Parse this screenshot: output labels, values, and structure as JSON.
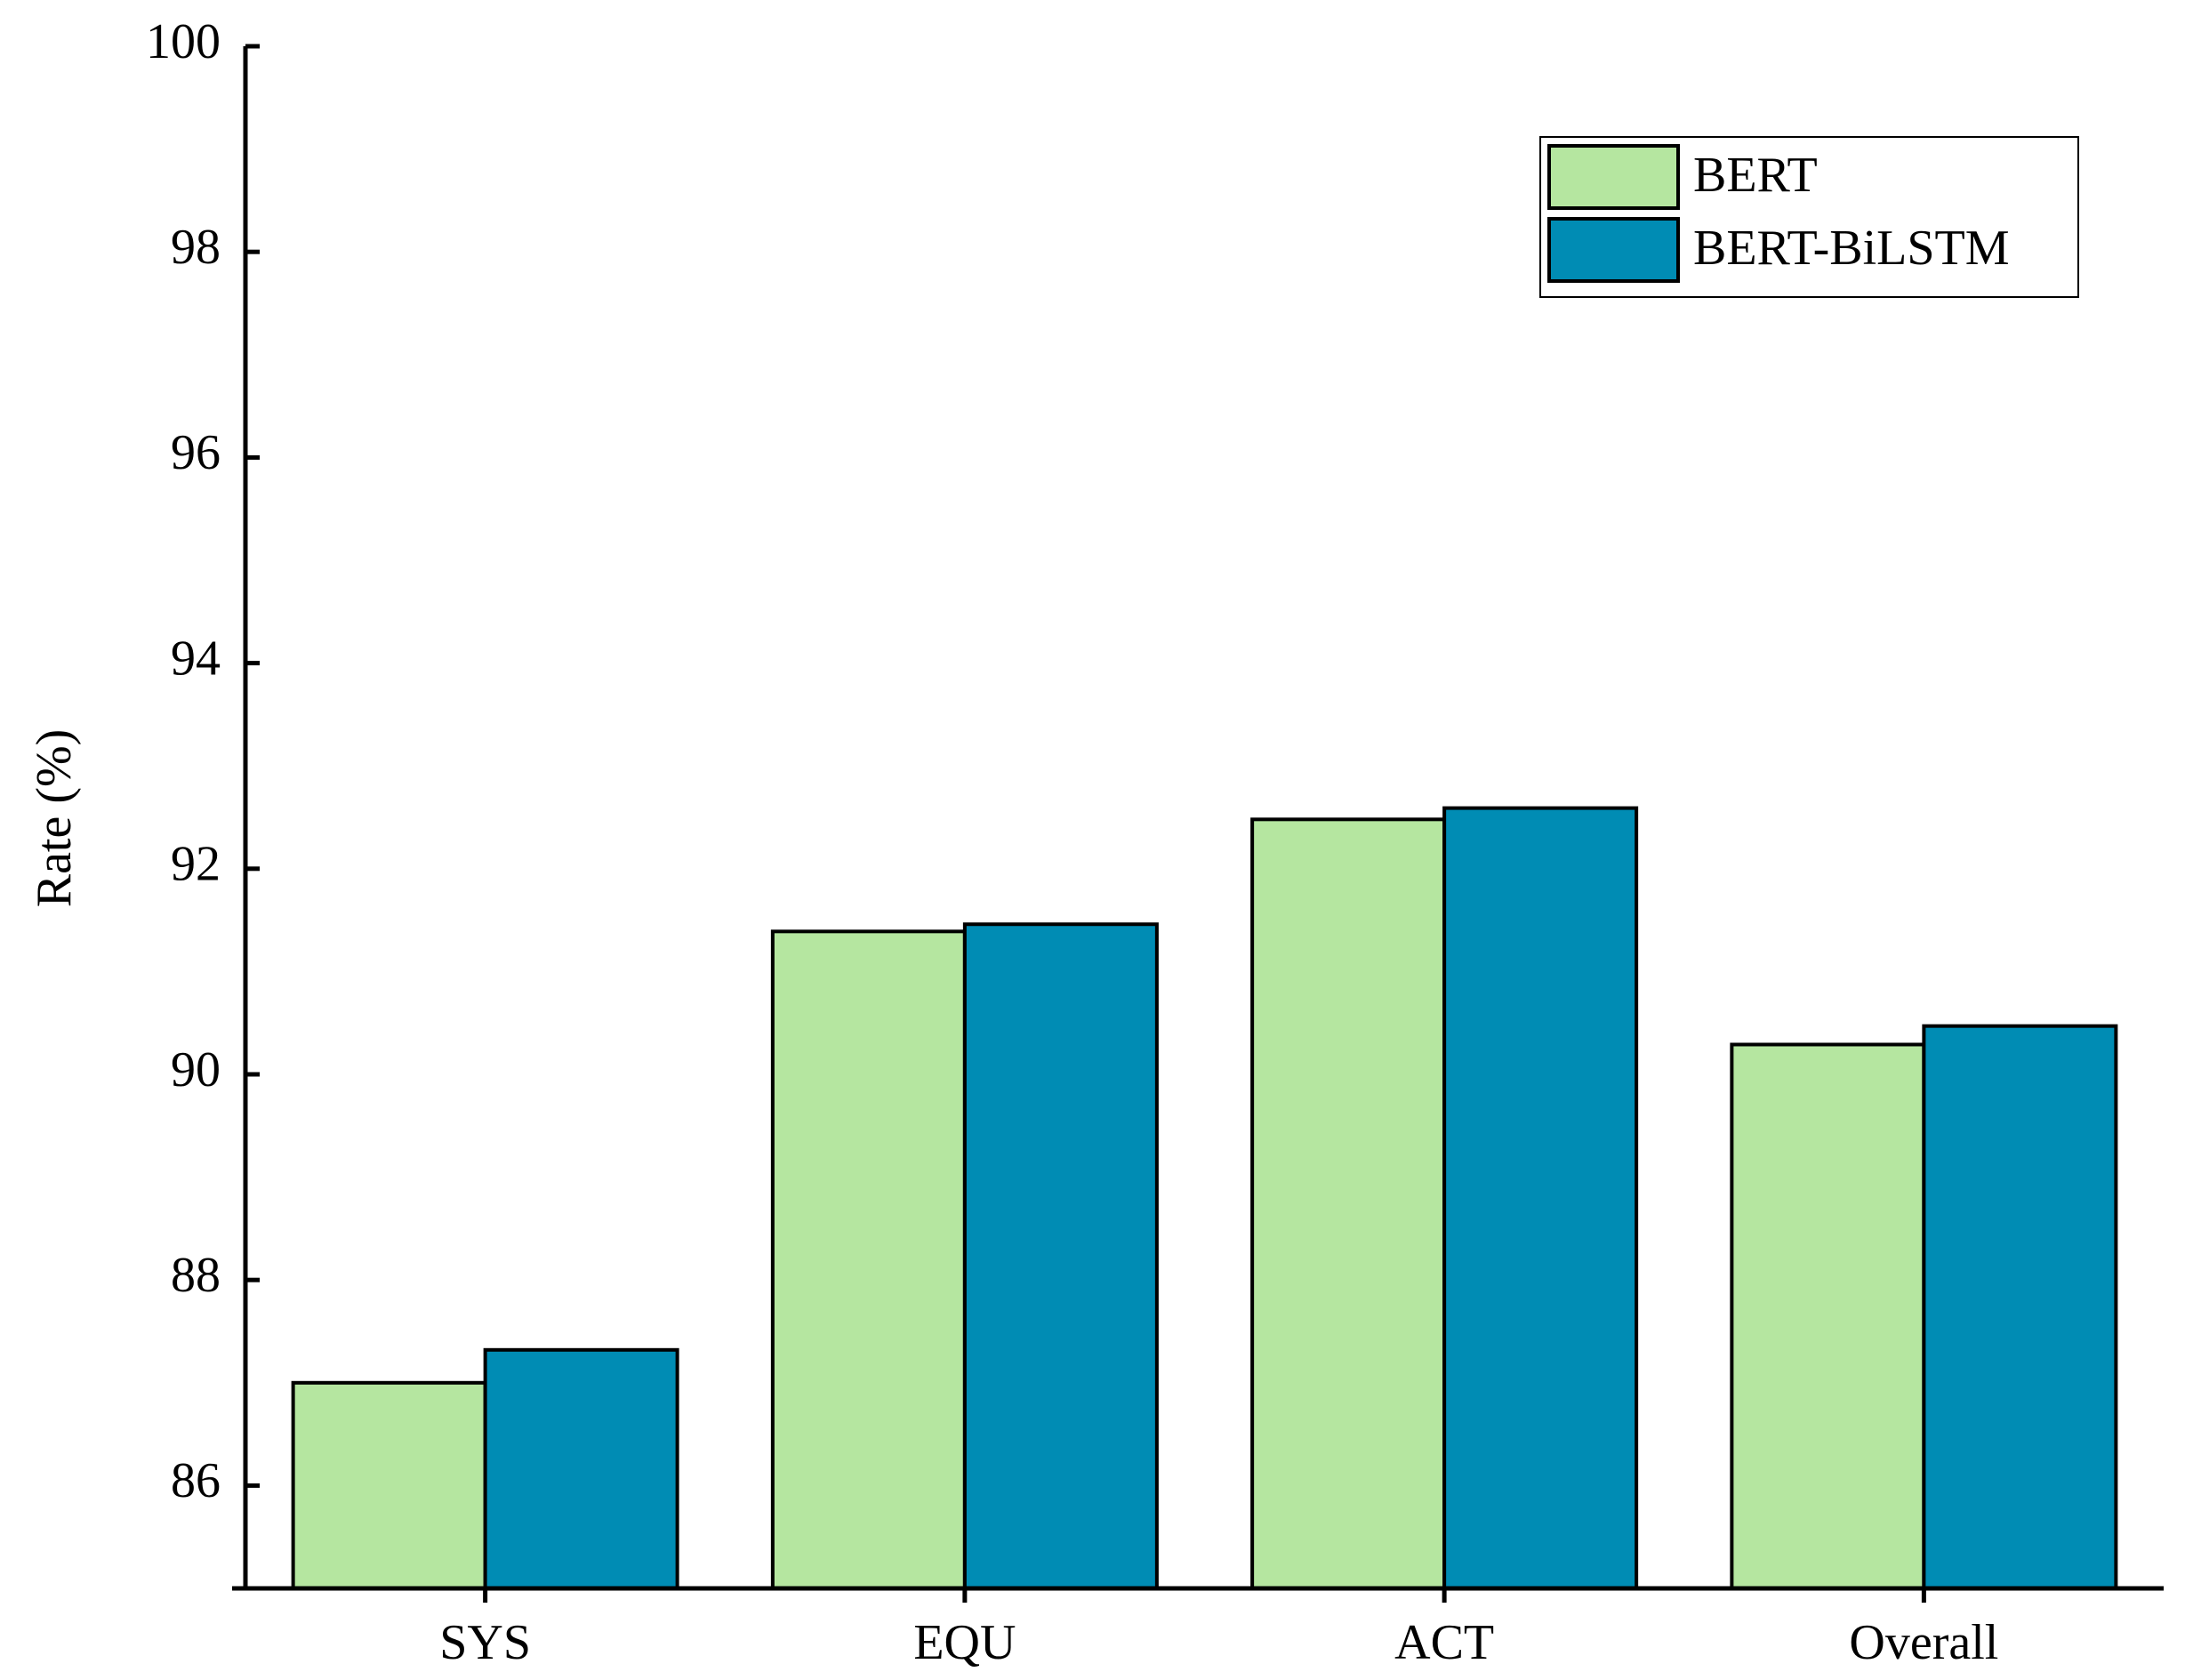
{
  "chart_data": {
    "type": "bar",
    "y_label": "Rate (%)",
    "categories": [
      "SYS",
      "EQU",
      "ACT",
      "Overall"
    ],
    "series": [
      {
        "name": "BERT",
        "color": "#b5e6a0",
        "values": [
          87.0,
          91.39,
          92.48,
          90.29
        ]
      },
      {
        "name": "BERT-BiLSTM",
        "color": "#008cb4",
        "values": [
          87.32,
          91.46,
          92.59,
          90.47
        ]
      }
    ],
    "ylim": [
      85,
      100
    ],
    "yticks": [
      86,
      88,
      90,
      92,
      94,
      96,
      98,
      100
    ],
    "legend": "upper right"
  }
}
